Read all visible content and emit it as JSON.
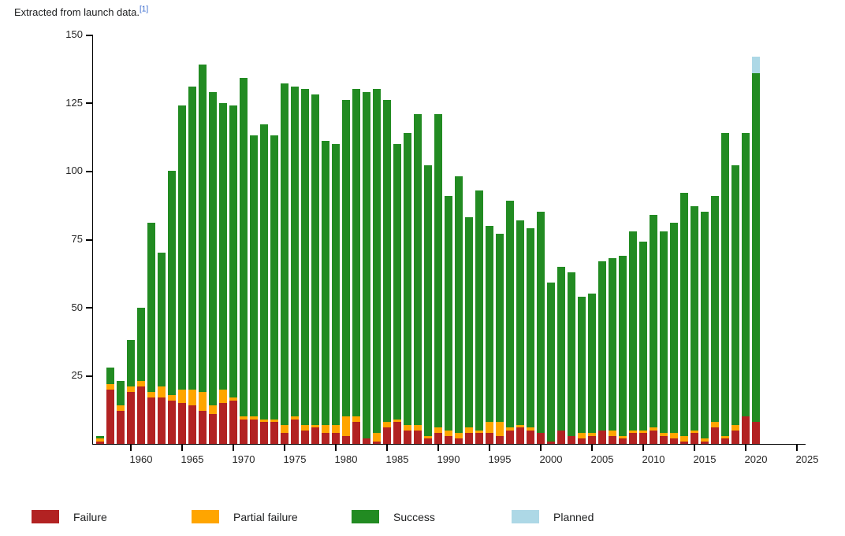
{
  "caption": {
    "text": "Extracted from launch data.",
    "reference": "[1]"
  },
  "colors": {
    "failure": "#b22222",
    "partial_failure": "#ffa500",
    "success": "#228b22",
    "planned": "#add8e6",
    "axis": "#000000",
    "tick_text": "#262626",
    "caption_text": "#202122",
    "reference_link": "#3366cc"
  },
  "legend": [
    {
      "label": "Failure",
      "color_key": "failure"
    },
    {
      "label": "Partial failure",
      "color_key": "partial_failure"
    },
    {
      "label": "Success",
      "color_key": "success"
    },
    {
      "label": "Planned",
      "color_key": "planned"
    }
  ],
  "chart_data": {
    "type": "bar",
    "stacked": true,
    "title": "Extracted from launch data.",
    "xlabel": "",
    "ylabel": "",
    "x": [
      1957,
      1958,
      1959,
      1960,
      1961,
      1962,
      1963,
      1964,
      1965,
      1966,
      1967,
      1968,
      1969,
      1970,
      1971,
      1972,
      1973,
      1974,
      1975,
      1976,
      1977,
      1978,
      1979,
      1980,
      1981,
      1982,
      1983,
      1984,
      1985,
      1986,
      1987,
      1988,
      1989,
      1990,
      1991,
      1992,
      1993,
      1994,
      1995,
      1996,
      1997,
      1998,
      1999,
      2000,
      2001,
      2002,
      2003,
      2004,
      2005,
      2006,
      2007,
      2008,
      2009,
      2010,
      2011,
      2012,
      2013,
      2014,
      2015,
      2016,
      2017,
      2018,
      2019,
      2020,
      2021
    ],
    "series": [
      {
        "name": "failure",
        "label": "Failure",
        "color_key": "failure",
        "values": [
          1,
          20,
          12,
          19,
          21,
          17,
          17,
          16,
          15,
          14,
          12,
          11,
          15,
          16,
          9,
          9,
          8,
          8,
          4,
          9,
          5,
          6,
          4,
          4,
          3,
          8,
          2,
          1,
          6,
          8,
          5,
          5,
          2,
          4,
          3,
          2,
          4,
          4,
          4,
          3,
          5,
          6,
          5,
          4,
          1,
          5,
          3,
          2,
          3,
          5,
          3,
          2,
          4,
          4,
          5,
          3,
          2,
          1,
          4,
          1,
          6,
          2,
          5,
          10,
          8
        ]
      },
      {
        "name": "partial_failure",
        "label": "Partial failure",
        "color_key": "partial_failure",
        "values": [
          1,
          2,
          2,
          2,
          2,
          2,
          4,
          2,
          5,
          6,
          7,
          3,
          5,
          1,
          1,
          1,
          1,
          1,
          3,
          1,
          2,
          1,
          3,
          3,
          7,
          2,
          0,
          3,
          2,
          1,
          2,
          2,
          1,
          2,
          2,
          2,
          2,
          1,
          4,
          5,
          1,
          1,
          1,
          0,
          0,
          0,
          0,
          2,
          1,
          0,
          2,
          1,
          1,
          1,
          1,
          1,
          2,
          2,
          1,
          1,
          2,
          1,
          2,
          0,
          0
        ]
      },
      {
        "name": "success",
        "label": "Success",
        "color_key": "success",
        "values": [
          1,
          6,
          9,
          17,
          27,
          62,
          49,
          82,
          104,
          111,
          120,
          115,
          105,
          107,
          124,
          103,
          108,
          104,
          125,
          121,
          123,
          121,
          104,
          103,
          116,
          120,
          127,
          126,
          118,
          101,
          107,
          114,
          99,
          115,
          86,
          94,
          77,
          88,
          72,
          69,
          83,
          75,
          73,
          81,
          58,
          60,
          60,
          50,
          51,
          62,
          63,
          66,
          73,
          69,
          78,
          74,
          77,
          89,
          82,
          83,
          83,
          111,
          95,
          104,
          128
        ]
      },
      {
        "name": "planned",
        "label": "Planned",
        "color_key": "planned",
        "values": [
          0,
          0,
          0,
          0,
          0,
          0,
          0,
          0,
          0,
          0,
          0,
          0,
          0,
          0,
          0,
          0,
          0,
          0,
          0,
          0,
          0,
          0,
          0,
          0,
          0,
          0,
          0,
          0,
          0,
          0,
          0,
          0,
          0,
          0,
          0,
          0,
          0,
          0,
          0,
          0,
          0,
          0,
          0,
          0,
          0,
          0,
          0,
          0,
          0,
          0,
          0,
          0,
          0,
          0,
          0,
          0,
          0,
          0,
          0,
          0,
          0,
          0,
          0,
          0,
          6
        ]
      }
    ],
    "ylim": [
      0,
      150
    ],
    "yticks": [
      25,
      50,
      75,
      100,
      125,
      150
    ],
    "xticks": [
      1960,
      1965,
      1970,
      1975,
      1980,
      1985,
      1990,
      1995,
      2000,
      2005,
      2010,
      2015,
      2020,
      2025
    ],
    "grid": false,
    "legend_position": "bottom"
  }
}
